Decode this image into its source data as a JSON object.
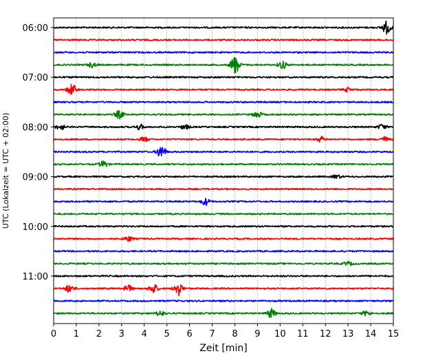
{
  "chart_data": {
    "type": "line",
    "title": "",
    "xlabel": "Zeit  [min]",
    "ylabel": "UTC (Lokalzeit = UTC + 02:00)",
    "xlim": [
      0,
      15
    ],
    "x_ticks": [
      "0",
      "1",
      "2",
      "3",
      "4",
      "5",
      "6",
      "7",
      "8",
      "9",
      "10",
      "11",
      "12",
      "13",
      "14",
      "15"
    ],
    "y_tick_labels": [
      "06:00",
      "07:00",
      "08:00",
      "09:00",
      "10:00",
      "11:00"
    ],
    "grid": "vertical dotted",
    "trace_interval_minutes": 15,
    "trace_colors": [
      "#000000",
      "#ff0000",
      "#0000ff",
      "#008000"
    ],
    "traces": [
      {
        "start": "06:00",
        "color": "#000000",
        "events": [
          {
            "t": 14.7,
            "amp": 1.0
          }
        ]
      },
      {
        "start": "06:15",
        "color": "#ff0000",
        "events": []
      },
      {
        "start": "06:30",
        "color": "#0000ff",
        "events": []
      },
      {
        "start": "06:45",
        "color": "#008000",
        "events": [
          {
            "t": 1.7,
            "amp": 0.35
          },
          {
            "t": 8.0,
            "amp": 1.5
          },
          {
            "t": 10.1,
            "amp": 0.6
          }
        ]
      },
      {
        "start": "07:00",
        "color": "#000000",
        "events": []
      },
      {
        "start": "07:15",
        "color": "#ff0000",
        "events": [
          {
            "t": 0.8,
            "amp": 0.9
          },
          {
            "t": 13.0,
            "amp": 0.3
          }
        ]
      },
      {
        "start": "07:30",
        "color": "#0000ff",
        "events": []
      },
      {
        "start": "07:45",
        "color": "#008000",
        "events": [
          {
            "t": 2.9,
            "amp": 0.6
          },
          {
            "t": 9.0,
            "amp": 0.5
          }
        ]
      },
      {
        "start": "08:00",
        "color": "#000000",
        "events": [
          {
            "t": 0.3,
            "amp": 0.45
          },
          {
            "t": 3.8,
            "amp": 0.4
          },
          {
            "t": 5.8,
            "amp": 0.35
          },
          {
            "t": 14.5,
            "amp": 0.4
          }
        ]
      },
      {
        "start": "08:15",
        "color": "#ff0000",
        "events": [
          {
            "t": 4.0,
            "amp": 0.35
          },
          {
            "t": 11.8,
            "amp": 0.4
          },
          {
            "t": 14.6,
            "amp": 0.4
          }
        ]
      },
      {
        "start": "08:30",
        "color": "#0000ff",
        "events": [
          {
            "t": 4.75,
            "amp": 1.0
          }
        ]
      },
      {
        "start": "08:45",
        "color": "#008000",
        "events": [
          {
            "t": 2.2,
            "amp": 0.5
          }
        ]
      },
      {
        "start": "09:00",
        "color": "#000000",
        "events": [
          {
            "t": 12.5,
            "amp": 0.3
          }
        ]
      },
      {
        "start": "09:15",
        "color": "#ff0000",
        "events": []
      },
      {
        "start": "09:30",
        "color": "#0000ff",
        "events": [
          {
            "t": 6.7,
            "amp": 0.55
          }
        ]
      },
      {
        "start": "09:45",
        "color": "#008000",
        "events": []
      },
      {
        "start": "10:00",
        "color": "#000000",
        "events": []
      },
      {
        "start": "10:15",
        "color": "#ff0000",
        "events": [
          {
            "t": 3.3,
            "amp": 0.4
          }
        ]
      },
      {
        "start": "10:30",
        "color": "#0000ff",
        "events": []
      },
      {
        "start": "10:45",
        "color": "#008000",
        "events": [
          {
            "t": 13.0,
            "amp": 0.3
          }
        ]
      },
      {
        "start": "11:00",
        "color": "#000000",
        "events": []
      },
      {
        "start": "11:15",
        "color": "#ff0000",
        "events": [
          {
            "t": 0.7,
            "amp": 0.6
          },
          {
            "t": 3.3,
            "amp": 0.5
          },
          {
            "t": 4.4,
            "amp": 0.75
          },
          {
            "t": 5.5,
            "amp": 1.1
          }
        ]
      },
      {
        "start": "11:30",
        "color": "#0000ff",
        "events": []
      },
      {
        "start": "11:45",
        "color": "#008000",
        "events": [
          {
            "t": 4.7,
            "amp": 0.45
          },
          {
            "t": 9.6,
            "amp": 0.7
          },
          {
            "t": 13.8,
            "amp": 0.35
          }
        ]
      }
    ]
  }
}
